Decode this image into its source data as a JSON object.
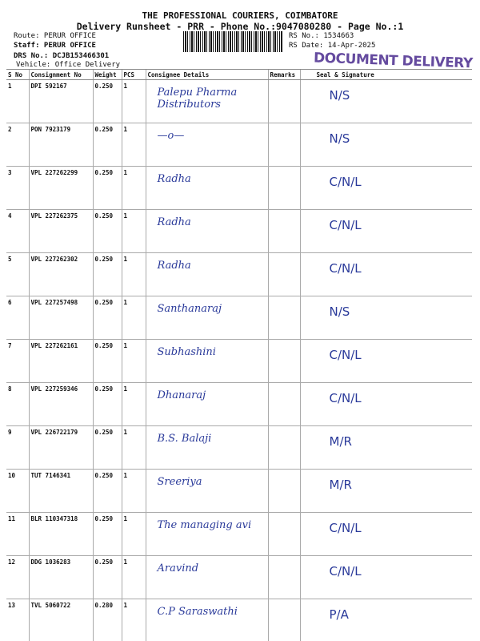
{
  "header": {
    "company": "THE PROFESSIONAL COURIERS, COIMBATORE",
    "subtitle": "Delivery Runsheet - PRR - Phone No.:9047080280 - Page No.:1",
    "route": "Route: PERUR OFFICE",
    "staff": "Staff: PERUR OFFICE",
    "drs": "DRS No.: DCJB153466301",
    "vehicle": "Vehicle: Office Delivery",
    "rs_no": "RS No.: 1534663",
    "rs_date": "RS Date: 14-Apr-2025",
    "stamp": "DOCUMENT DELIVERY"
  },
  "table": {
    "columns": [
      "S No",
      "Consignment No",
      "Weight",
      "PCS",
      "Consignee Details",
      "Remarks",
      "Seal & Signature"
    ],
    "rows": [
      {
        "sno": "1",
        "cno": "DPI 592167",
        "weight": "0.250",
        "pcs": "1",
        "consignee": "Palepu Pharma Distributors",
        "remarks": "",
        "seal": "N/S"
      },
      {
        "sno": "2",
        "cno": "PON 7923179",
        "weight": "0.250",
        "pcs": "1",
        "consignee": "—o—",
        "remarks": "",
        "seal": "N/S"
      },
      {
        "sno": "3",
        "cno": "VPL 227262299",
        "weight": "0.250",
        "pcs": "1",
        "consignee": "Radha",
        "remarks": "",
        "seal": "C/N/L"
      },
      {
        "sno": "4",
        "cno": "VPL 227262375",
        "weight": "0.250",
        "pcs": "1",
        "consignee": "Radha",
        "remarks": "",
        "seal": "C/N/L"
      },
      {
        "sno": "5",
        "cno": "VPL 227262302",
        "weight": "0.250",
        "pcs": "1",
        "consignee": "Radha",
        "remarks": "",
        "seal": "C/N/L"
      },
      {
        "sno": "6",
        "cno": "VPL 227257498",
        "weight": "0.250",
        "pcs": "1",
        "consignee": "Santhanaraj",
        "remarks": "",
        "seal": "N/S"
      },
      {
        "sno": "7",
        "cno": "VPL 227262161",
        "weight": "0.250",
        "pcs": "1",
        "consignee": "Subhashini",
        "remarks": "",
        "seal": "C/N/L"
      },
      {
        "sno": "8",
        "cno": "VPL 227259346",
        "weight": "0.250",
        "pcs": "1",
        "consignee": "Dhanaraj",
        "remarks": "",
        "seal": "C/N/L"
      },
      {
        "sno": "9",
        "cno": "VPL 226722179",
        "weight": "0.250",
        "pcs": "1",
        "consignee": "B.S. Balaji",
        "remarks": "",
        "seal": "M/R"
      },
      {
        "sno": "10",
        "cno": "TUT 7146341",
        "weight": "0.250",
        "pcs": "1",
        "consignee": "Sreeriya",
        "remarks": "",
        "seal": "M/R"
      },
      {
        "sno": "11",
        "cno": "BLR 110347318",
        "weight": "0.250",
        "pcs": "1",
        "consignee": "The managing avi",
        "remarks": "",
        "seal": "C/N/L"
      },
      {
        "sno": "12",
        "cno": "DDG 1036283",
        "weight": "0.250",
        "pcs": "1",
        "consignee": "Aravind",
        "remarks": "",
        "seal": "C/N/L"
      },
      {
        "sno": "13",
        "cno": "TVL 5060722",
        "weight": "0.280",
        "pcs": "1",
        "consignee": "C.P Saraswathi",
        "remarks": "",
        "seal": "P/A"
      }
    ]
  }
}
